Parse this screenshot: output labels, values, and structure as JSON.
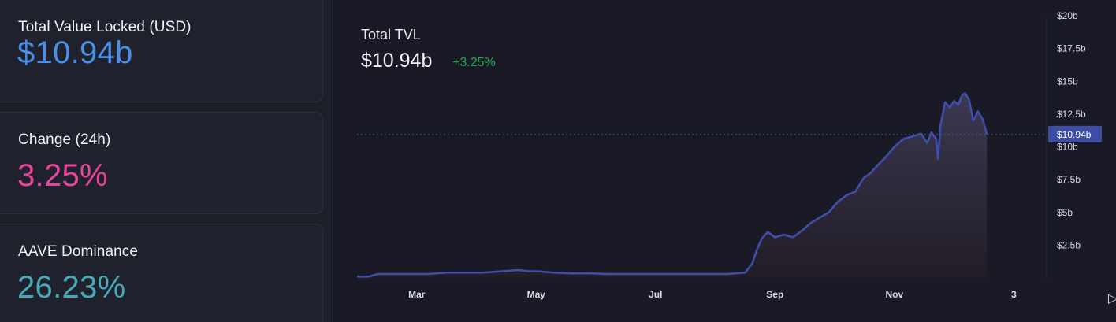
{
  "stats": [
    {
      "label": "Total Value Locked (USD)",
      "value": "$10.94b",
      "color": "#4a8fe7"
    },
    {
      "label": "Change (24h)",
      "value": "3.25%",
      "color": "#e8459a"
    },
    {
      "label": "AAVE Dominance",
      "value": "26.23%",
      "color": "#45a9b8"
    }
  ],
  "chart": {
    "title": "Total TVL",
    "value": "$10.94b",
    "change": "+3.25%"
  },
  "chart_data": {
    "type": "area",
    "title": "Total TVL",
    "x_tick_labels": [
      "Mar",
      "May",
      "Jul",
      "Sep",
      "Nov",
      "3"
    ],
    "y_tick_labels": [
      "$2.5b",
      "$5b",
      "$7.5b",
      "$10b",
      "$12.5b",
      "$15b",
      "$17.5b",
      "$20b"
    ],
    "y_ticks": [
      2.5,
      5,
      7.5,
      10,
      12.5,
      15,
      17.5,
      20
    ],
    "ylim": [
      0,
      20
    ],
    "xlim": [
      0,
      11.55
    ],
    "x_ticks": [
      1.0,
      3.0,
      5.0,
      7.0,
      9.0,
      11.0
    ],
    "current_value": 10.94,
    "current_label": "$10.94b",
    "line_color": "#3f4ea8",
    "series": [
      {
        "x": [
          0.0,
          0.2,
          0.35,
          0.6,
          0.9,
          1.2,
          1.5,
          1.8,
          2.1,
          2.4,
          2.7,
          2.9,
          3.05,
          3.3,
          3.6,
          3.9,
          4.2,
          4.6,
          5.0,
          5.4,
          5.8,
          6.2,
          6.5,
          6.62,
          6.7,
          6.78,
          6.88,
          7.0,
          7.15,
          7.3,
          7.45,
          7.6,
          7.75,
          7.9,
          8.05,
          8.2,
          8.35,
          8.48,
          8.6,
          8.72,
          8.85,
          9.0,
          9.15,
          9.3,
          9.45,
          9.55,
          9.62,
          9.7,
          9.73,
          9.77,
          9.85,
          9.93,
          10.0,
          10.07,
          10.13,
          10.18,
          10.25,
          10.32,
          10.4,
          10.48,
          10.55
        ],
        "y": [
          0.1,
          0.1,
          0.3,
          0.3,
          0.3,
          0.3,
          0.4,
          0.4,
          0.4,
          0.5,
          0.6,
          0.5,
          0.5,
          0.4,
          0.35,
          0.35,
          0.3,
          0.3,
          0.3,
          0.3,
          0.3,
          0.3,
          0.4,
          1.1,
          2.2,
          3.0,
          3.5,
          3.1,
          3.3,
          3.1,
          3.6,
          4.2,
          4.6,
          5.0,
          5.8,
          6.3,
          6.6,
          7.6,
          8.0,
          8.6,
          9.2,
          10.0,
          10.6,
          10.8,
          11.0,
          10.3,
          11.1,
          10.6,
          9.1,
          11.6,
          13.4,
          13.0,
          13.5,
          13.2,
          13.9,
          14.1,
          13.6,
          12.0,
          12.7,
          12.1,
          10.94
        ]
      }
    ]
  }
}
